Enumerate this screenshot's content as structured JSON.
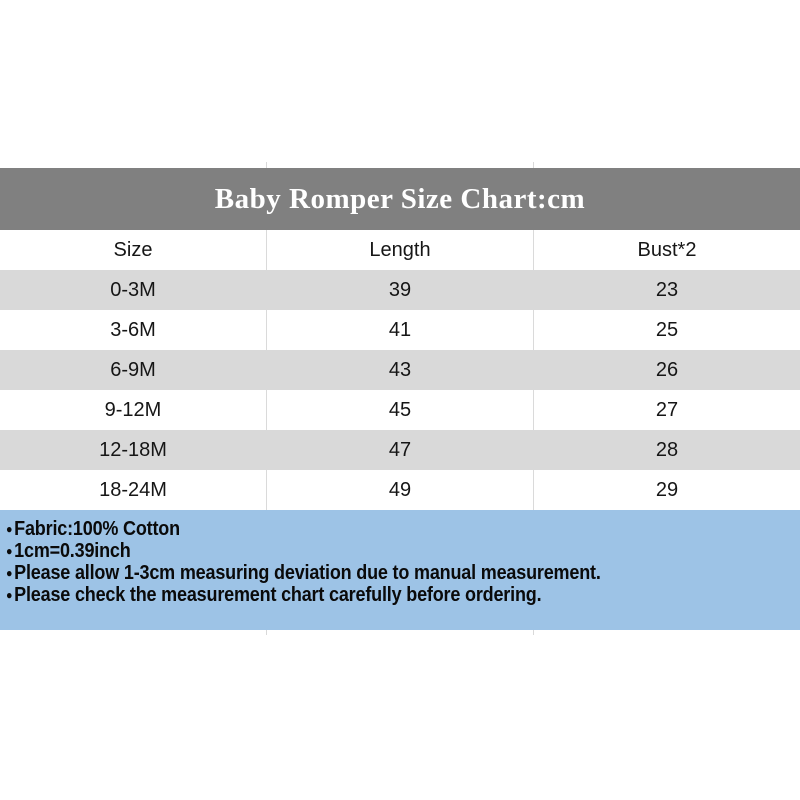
{
  "title": "Baby Romper Size Chart:cm",
  "table": {
    "headers": {
      "size": "Size",
      "length": "Length",
      "bust": "Bust*2"
    },
    "rows": [
      {
        "size": "0-3M",
        "length": "39",
        "bust": "23"
      },
      {
        "size": "3-6M",
        "length": "41",
        "bust": "25"
      },
      {
        "size": "6-9M",
        "length": "43",
        "bust": "26"
      },
      {
        "size": "9-12M",
        "length": "45",
        "bust": "27"
      },
      {
        "size": "12-18M",
        "length": "47",
        "bust": "28"
      },
      {
        "size": "18-24M",
        "length": "49",
        "bust": "29"
      }
    ]
  },
  "notes": {
    "bullet": "●",
    "items": [
      "Fabric:100% Cotton",
      "1cm=0.39inch",
      "Please allow 1-3cm measuring deviation due to manual measurement.",
      "Please check the measurement chart carefully before ordering."
    ]
  },
  "colors": {
    "title_bar": "#808080",
    "title_text": "#ffffff",
    "row_alt": "#d9d9d9",
    "notes_bg": "#9dc3e6"
  },
  "chart_data": {
    "type": "table",
    "title": "Baby Romper Size Chart:cm",
    "unit": "cm",
    "columns": [
      "Size",
      "Length",
      "Bust*2"
    ],
    "rows": [
      [
        "0-3M",
        39,
        23
      ],
      [
        "3-6M",
        41,
        25
      ],
      [
        "6-9M",
        43,
        26
      ],
      [
        "9-12M",
        45,
        27
      ],
      [
        "12-18M",
        47,
        28
      ],
      [
        "18-24M",
        49,
        29
      ]
    ]
  }
}
